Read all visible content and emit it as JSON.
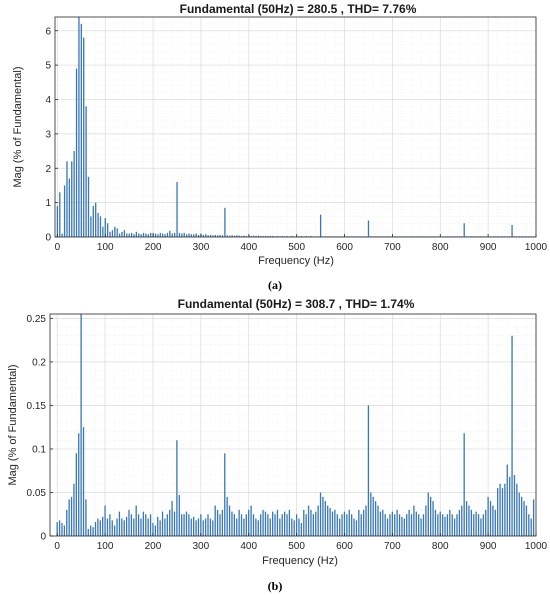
{
  "chart_data": [
    {
      "type": "bar",
      "title": "Fundamental (50Hz) = 280.5 , THD= 7.76%",
      "xlabel": "Frequency (Hz)",
      "ylabel": "Mag (% of Fundamental)",
      "caption": "(a)",
      "xlim": [
        -5,
        1000
      ],
      "ylim": [
        0,
        6.4
      ],
      "xticks": [
        0,
        100,
        200,
        300,
        400,
        500,
        600,
        700,
        800,
        900,
        1000
      ],
      "yticks": [
        0,
        1,
        2,
        3,
        4,
        5,
        6
      ],
      "grid": true,
      "bar_spacing_hz": 5,
      "x": [
        0,
        5,
        10,
        15,
        20,
        25,
        30,
        35,
        40,
        45,
        50,
        55,
        60,
        65,
        70,
        75,
        80,
        85,
        90,
        95,
        100,
        105,
        110,
        115,
        120,
        125,
        130,
        135,
        140,
        145,
        150,
        155,
        160,
        165,
        170,
        175,
        180,
        185,
        190,
        195,
        200,
        205,
        210,
        215,
        220,
        225,
        230,
        235,
        240,
        245,
        250,
        255,
        260,
        265,
        270,
        275,
        280,
        285,
        290,
        295,
        300,
        305,
        310,
        315,
        320,
        325,
        330,
        335,
        340,
        345,
        350,
        355,
        360,
        365,
        370,
        375,
        380,
        385,
        390,
        395,
        400,
        405,
        410,
        415,
        420,
        425,
        430,
        435,
        440,
        445,
        450,
        455,
        460,
        465,
        470,
        475,
        480,
        485,
        490,
        495,
        500,
        505,
        510,
        515,
        520,
        525,
        530,
        535,
        540,
        545,
        550,
        555,
        560,
        565,
        570,
        575,
        580,
        585,
        590,
        595,
        600,
        605,
        610,
        615,
        620,
        625,
        630,
        635,
        640,
        645,
        650,
        655,
        660,
        665,
        670,
        675,
        680,
        685,
        690,
        695,
        700,
        705,
        710,
        715,
        720,
        725,
        730,
        735,
        740,
        745,
        750,
        755,
        760,
        765,
        770,
        775,
        780,
        785,
        790,
        795,
        800,
        805,
        810,
        815,
        820,
        825,
        830,
        835,
        840,
        845,
        850,
        855,
        860,
        865,
        870,
        875,
        880,
        885,
        890,
        895,
        900,
        905,
        910,
        915,
        920,
        925,
        930,
        935,
        940,
        945,
        950,
        955,
        960,
        965,
        970,
        975,
        980,
        985,
        990,
        995
      ],
      "values": [
        0.9,
        1.3,
        0.1,
        1.5,
        2.2,
        1.7,
        2.2,
        2.5,
        4.9,
        6.4,
        6.2,
        5.8,
        3.8,
        1.75,
        0.6,
        0.9,
        1.0,
        0.7,
        0.6,
        0.3,
        0.55,
        0.4,
        0.15,
        0.2,
        0.3,
        0.25,
        0.1,
        0.15,
        0.2,
        0.1,
        0.1,
        0.12,
        0.08,
        0.15,
        0.1,
        0.08,
        0.12,
        0.1,
        0.08,
        0.12,
        0.12,
        0.1,
        0.08,
        0.12,
        0.1,
        0.08,
        0.12,
        0.18,
        0.1,
        0.12,
        1.6,
        0.12,
        0.1,
        0.12,
        0.08,
        0.1,
        0.08,
        0.08,
        0.1,
        0.06,
        0.1,
        0.06,
        0.08,
        0.05,
        0.06,
        0.05,
        0.06,
        0.05,
        0.06,
        0.05,
        0.85,
        0.05,
        0.04,
        0.05,
        0.04,
        0.05,
        0.04,
        0.03,
        0.04,
        0.03,
        0.04,
        0.03,
        0.04,
        0.03,
        0.04,
        0.03,
        0.03,
        0.03,
        0.03,
        0.03,
        0.03,
        0.02,
        0.03,
        0.02,
        0.03,
        0.02,
        0.03,
        0.02,
        0.03,
        0.02,
        0.03,
        0.02,
        0.03,
        0.02,
        0.03,
        0.02,
        0.03,
        0.02,
        0.02,
        0.02,
        0.65,
        0.02,
        0.02,
        0.02,
        0.02,
        0.02,
        0.02,
        0.02,
        0.02,
        0.02,
        0.02,
        0.02,
        0.02,
        0.02,
        0.02,
        0.02,
        0.02,
        0.02,
        0.02,
        0.02,
        0.48,
        0.02,
        0.02,
        0.02,
        0.02,
        0.02,
        0.02,
        0.02,
        0.02,
        0.02,
        0.02,
        0.02,
        0.02,
        0.02,
        0.02,
        0.02,
        0.02,
        0.02,
        0.02,
        0.02,
        0.02,
        0.02,
        0.02,
        0.02,
        0.02,
        0.02,
        0.02,
        0.02,
        0.02,
        0.02,
        0.02,
        0.02,
        0.02,
        0.02,
        0.02,
        0.02,
        0.02,
        0.02,
        0.02,
        0.02,
        0.4,
        0.02,
        0.02,
        0.02,
        0.02,
        0.02,
        0.02,
        0.02,
        0.02,
        0.02,
        0.02,
        0.02,
        0.02,
        0.02,
        0.02,
        0.02,
        0.02,
        0.02,
        0.02,
        0.02,
        0.35,
        0.02,
        0.02,
        0.02,
        0.02,
        0.02,
        0.02,
        0.02,
        0.02,
        0.02
      ]
    },
    {
      "type": "bar",
      "title": "Fundamental (50Hz) = 308.7 , THD= 1.74%",
      "xlabel": "Frequency (Hz)",
      "ylabel": "Mag (% of Fundamental)",
      "caption": "(b)",
      "xlim": [
        -15,
        1000
      ],
      "ylim": [
        0,
        0.255
      ],
      "xticks": [
        0,
        100,
        200,
        300,
        400,
        500,
        600,
        700,
        800,
        900,
        1000
      ],
      "yticks": [
        0,
        0.05,
        0.1,
        0.15,
        0.2,
        0.25
      ],
      "ytick_labels": [
        "0",
        "0.05",
        "0.1",
        "0.15",
        "0.2",
        "0.25"
      ],
      "grid": true,
      "bar_spacing_hz": 5,
      "x": [
        0,
        5,
        10,
        15,
        20,
        25,
        30,
        35,
        40,
        45,
        50,
        55,
        60,
        65,
        70,
        75,
        80,
        85,
        90,
        95,
        100,
        105,
        110,
        115,
        120,
        125,
        130,
        135,
        140,
        145,
        150,
        155,
        160,
        165,
        170,
        175,
        180,
        185,
        190,
        195,
        200,
        205,
        210,
        215,
        220,
        225,
        230,
        235,
        240,
        245,
        250,
        255,
        260,
        265,
        270,
        275,
        280,
        285,
        290,
        295,
        300,
        305,
        310,
        315,
        320,
        325,
        330,
        335,
        340,
        345,
        350,
        355,
        360,
        365,
        370,
        375,
        380,
        385,
        390,
        395,
        400,
        405,
        410,
        415,
        420,
        425,
        430,
        435,
        440,
        445,
        450,
        455,
        460,
        465,
        470,
        475,
        480,
        485,
        490,
        495,
        500,
        505,
        510,
        515,
        520,
        525,
        530,
        535,
        540,
        545,
        550,
        555,
        560,
        565,
        570,
        575,
        580,
        585,
        590,
        595,
        600,
        605,
        610,
        615,
        620,
        625,
        630,
        635,
        640,
        645,
        650,
        655,
        660,
        665,
        670,
        675,
        680,
        685,
        690,
        695,
        700,
        705,
        710,
        715,
        720,
        725,
        730,
        735,
        740,
        745,
        750,
        755,
        760,
        765,
        770,
        775,
        780,
        785,
        790,
        795,
        800,
        805,
        810,
        815,
        820,
        825,
        830,
        835,
        840,
        845,
        850,
        855,
        860,
        865,
        870,
        875,
        880,
        885,
        890,
        895,
        900,
        905,
        910,
        915,
        920,
        925,
        930,
        935,
        940,
        945,
        950,
        955,
        960,
        965,
        970,
        975,
        980,
        985,
        990,
        995
      ],
      "values": [
        0.016,
        0.018,
        0.015,
        0.012,
        0.03,
        0.042,
        0.045,
        0.06,
        0.095,
        0.118,
        0.255,
        0.125,
        0.042,
        0.008,
        0.012,
        0.01,
        0.016,
        0.02,
        0.018,
        0.022,
        0.035,
        0.02,
        0.025,
        0.018,
        0.012,
        0.02,
        0.028,
        0.02,
        0.018,
        0.022,
        0.03,
        0.025,
        0.02,
        0.035,
        0.025,
        0.02,
        0.028,
        0.025,
        0.02,
        0.025,
        0.015,
        0.012,
        0.022,
        0.018,
        0.028,
        0.02,
        0.025,
        0.03,
        0.04,
        0.028,
        0.11,
        0.047,
        0.025,
        0.025,
        0.028,
        0.025,
        0.02,
        0.022,
        0.018,
        0.02,
        0.025,
        0.018,
        0.02,
        0.025,
        0.02,
        0.018,
        0.035,
        0.03,
        0.025,
        0.03,
        0.095,
        0.045,
        0.035,
        0.028,
        0.025,
        0.02,
        0.03,
        0.025,
        0.02,
        0.025,
        0.03,
        0.035,
        0.025,
        0.02,
        0.018,
        0.025,
        0.03,
        0.028,
        0.025,
        0.02,
        0.028,
        0.025,
        0.03,
        0.02,
        0.025,
        0.028,
        0.025,
        0.03,
        0.02,
        0.018,
        0.025,
        0.02,
        0.015,
        0.03,
        0.025,
        0.035,
        0.03,
        0.025,
        0.028,
        0.035,
        0.05,
        0.045,
        0.04,
        0.035,
        0.032,
        0.028,
        0.03,
        0.025,
        0.02,
        0.025,
        0.028,
        0.025,
        0.03,
        0.025,
        0.02,
        0.018,
        0.03,
        0.025,
        0.03,
        0.035,
        0.15,
        0.05,
        0.045,
        0.04,
        0.035,
        0.028,
        0.03,
        0.025,
        0.02,
        0.025,
        0.028,
        0.025,
        0.03,
        0.025,
        0.022,
        0.02,
        0.025,
        0.03,
        0.025,
        0.035,
        0.028,
        0.025,
        0.02,
        0.025,
        0.035,
        0.05,
        0.045,
        0.04,
        0.03,
        0.025,
        0.028,
        0.025,
        0.022,
        0.025,
        0.03,
        0.025,
        0.02,
        0.025,
        0.03,
        0.035,
        0.118,
        0.04,
        0.035,
        0.03,
        0.025,
        0.028,
        0.025,
        0.02,
        0.025,
        0.03,
        0.045,
        0.04,
        0.035,
        0.03,
        0.055,
        0.06,
        0.055,
        0.06,
        0.082,
        0.068,
        0.23,
        0.07,
        0.06,
        0.05,
        0.045,
        0.04,
        0.035,
        0.025,
        0.02,
        0.042
      ]
    }
  ]
}
